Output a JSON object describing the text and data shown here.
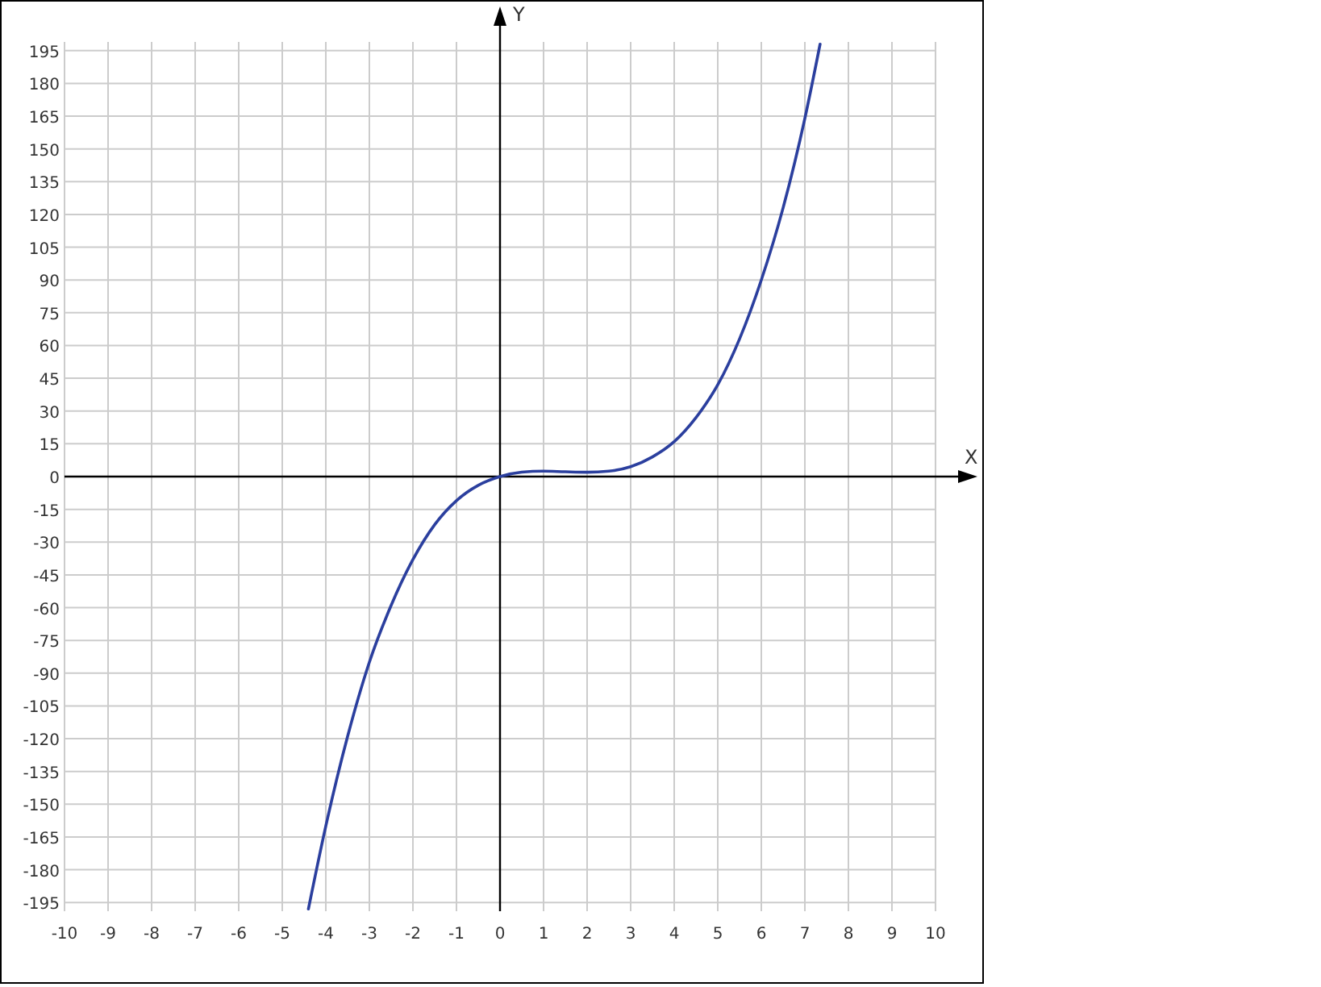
{
  "chart_data": {
    "type": "line",
    "xlabel": "X",
    "ylabel": "Y",
    "xlim": [
      -10,
      10
    ],
    "ylim": [
      -199,
      199
    ],
    "xticks": [
      -10,
      -9,
      -8,
      -7,
      -6,
      -5,
      -4,
      -3,
      -2,
      -1,
      0,
      1,
      2,
      3,
      4,
      5,
      6,
      7,
      8,
      9,
      10
    ],
    "yticks": [
      -195,
      -180,
      -165,
      -150,
      -135,
      -120,
      -105,
      -90,
      -75,
      -60,
      -45,
      -30,
      -15,
      0,
      15,
      30,
      45,
      60,
      75,
      90,
      105,
      120,
      135,
      150,
      165,
      180,
      195
    ],
    "grid": true,
    "series": [
      {
        "color": "#2b3f9e",
        "x": [
          -4.4,
          -4,
          -3.5,
          -3,
          -2.5,
          -2,
          -1.5,
          -1,
          -0.5,
          0,
          0.5,
          1,
          1.5,
          2,
          2.5,
          3,
          3.5,
          4,
          4.5,
          5,
          5.5,
          6,
          6.5,
          7,
          7.35
        ],
        "values": [
          -198,
          -160,
          -119,
          -85,
          -59,
          -38,
          -22,
          -11,
          -4,
          0,
          2,
          2.5,
          2.2,
          2,
          2.5,
          4.5,
          9,
          16,
          27,
          42,
          63,
          90,
          123,
          164,
          198
        ]
      }
    ]
  }
}
